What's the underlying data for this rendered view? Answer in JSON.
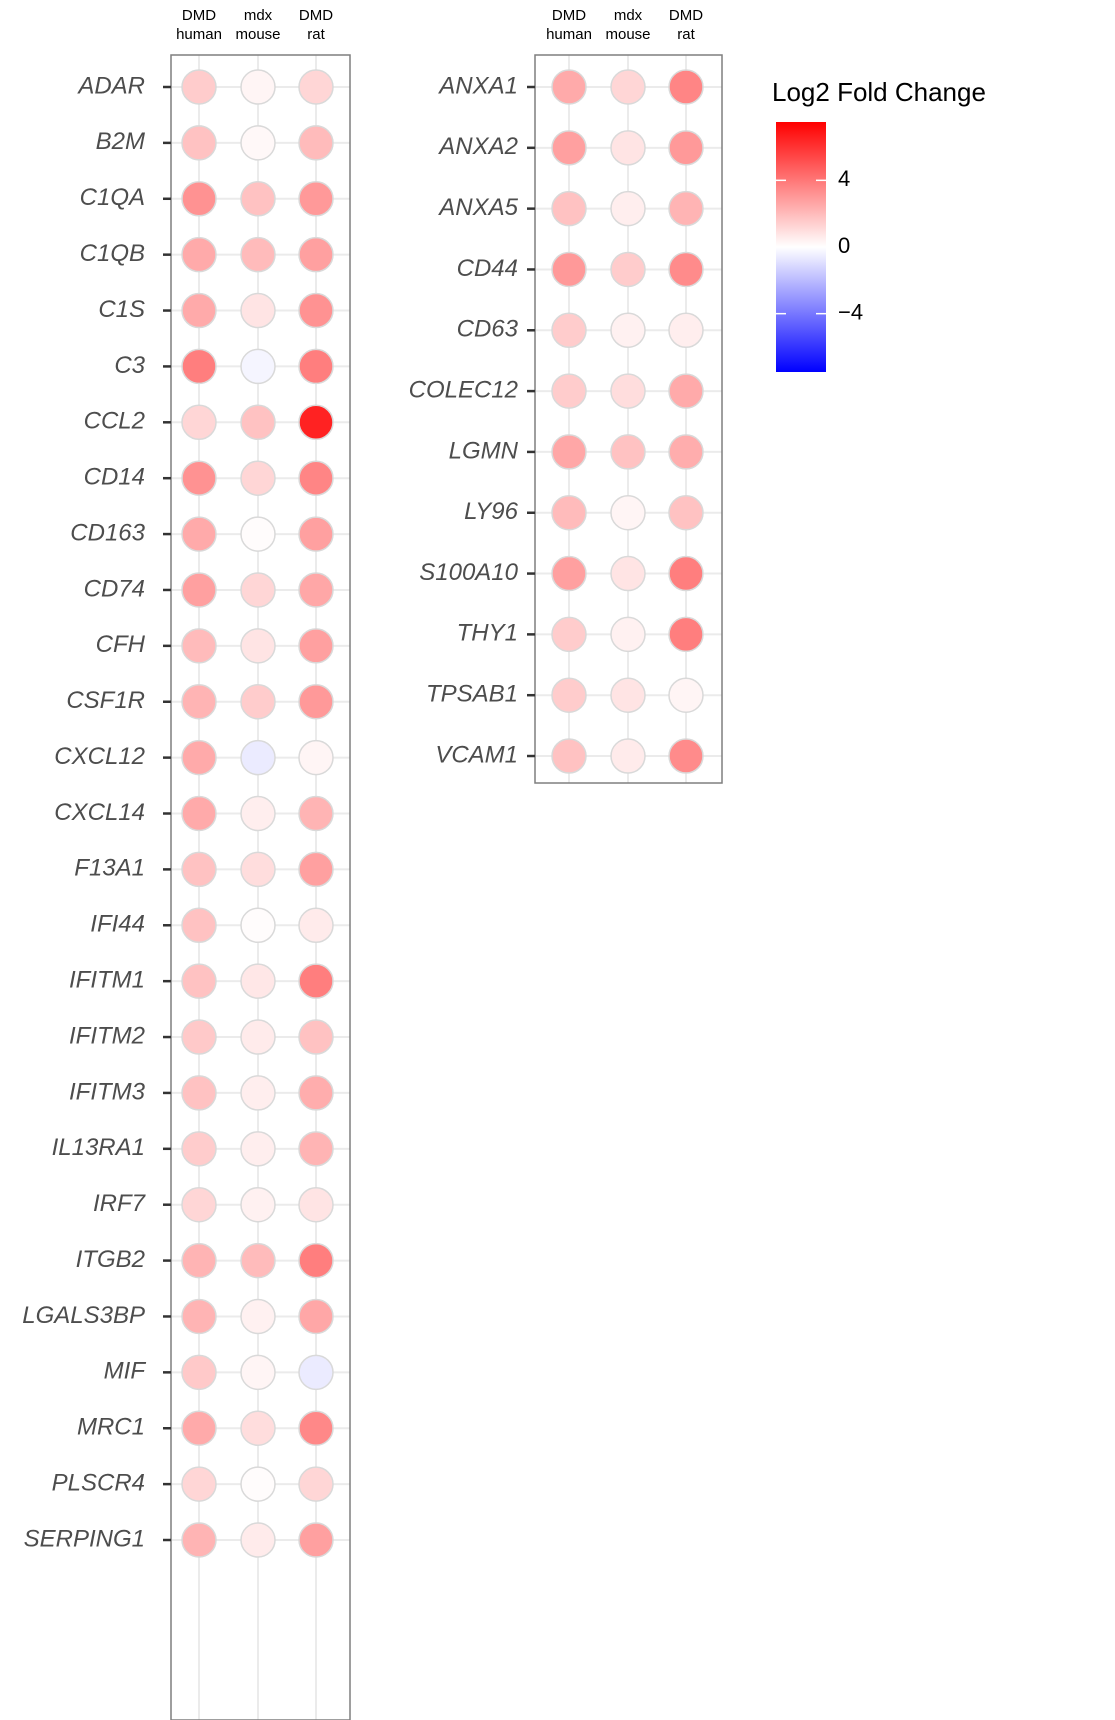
{
  "chart_data": {
    "type": "dotplot",
    "columns": [
      [
        "DMD",
        "human"
      ],
      [
        "mdx",
        "mouse"
      ],
      [
        "DMD",
        "rat"
      ]
    ],
    "panels": [
      {
        "genes": [
          "ADAR",
          "B2M",
          "C1QA",
          "C1QB",
          "C1S",
          "C3",
          "CCL2",
          "CD14",
          "CD163",
          "CD74",
          "CFH",
          "CSF1R",
          "CXCL12",
          "CXCL14",
          "F13A1",
          "IFI44",
          "IFITM1",
          "IFITM2",
          "IFITM3",
          "IL13RA1",
          "IRF7",
          "ITGB2",
          "LGALS3BP",
          "MIF",
          "MRC1",
          "PLSCR4",
          "SERPING1"
        ],
        "values": [
          [
            1.5,
            0.3,
            1.2
          ],
          [
            1.8,
            0.2,
            2.0
          ],
          [
            3.2,
            1.8,
            3.0
          ],
          [
            2.5,
            2.0,
            2.8
          ],
          [
            2.5,
            0.8,
            3.2
          ],
          [
            3.8,
            -0.3,
            3.8
          ],
          [
            1.2,
            1.8,
            6.5
          ],
          [
            3.2,
            1.2,
            3.6
          ],
          [
            2.5,
            0.1,
            2.8
          ],
          [
            2.8,
            1.2,
            2.6
          ],
          [
            2.0,
            0.8,
            2.8
          ],
          [
            2.2,
            1.5,
            3.0
          ],
          [
            2.5,
            -0.6,
            0.3
          ],
          [
            2.5,
            0.5,
            2.2
          ],
          [
            1.8,
            1.0,
            2.8
          ],
          [
            1.8,
            0.1,
            0.6
          ],
          [
            1.8,
            0.7,
            3.8
          ],
          [
            1.6,
            0.6,
            1.8
          ],
          [
            1.8,
            0.5,
            2.4
          ],
          [
            1.5,
            0.5,
            2.2
          ],
          [
            1.2,
            0.4,
            0.8
          ],
          [
            2.2,
            2.0,
            3.8
          ],
          [
            2.2,
            0.4,
            2.6
          ],
          [
            1.6,
            0.3,
            -0.6
          ],
          [
            2.5,
            1.0,
            3.5
          ],
          [
            1.2,
            0.1,
            1.2
          ],
          [
            2.2,
            0.6,
            2.8
          ]
        ]
      },
      {
        "genes": [
          "ANXA1",
          "ANXA2",
          "ANXA5",
          "CD44",
          "CD63",
          "COLEC12",
          "LGMN",
          "LY96",
          "S100A10",
          "THY1",
          "TPSAB1",
          "VCAM1"
        ],
        "values": [
          [
            2.5,
            1.2,
            3.6
          ],
          [
            2.8,
            0.8,
            3.0
          ],
          [
            1.8,
            0.5,
            2.2
          ],
          [
            3.0,
            1.5,
            3.4
          ],
          [
            1.5,
            0.4,
            0.5
          ],
          [
            1.5,
            1.0,
            2.5
          ],
          [
            2.6,
            1.8,
            2.4
          ],
          [
            2.0,
            0.3,
            1.8
          ],
          [
            2.8,
            0.8,
            3.8
          ],
          [
            1.5,
            0.4,
            3.8
          ],
          [
            1.5,
            0.8,
            0.3
          ],
          [
            1.8,
            0.6,
            3.4
          ]
        ]
      }
    ],
    "colorbar": {
      "title": "Log2 Fold Change",
      "lim": [
        -7.5,
        7.5
      ],
      "ticks": [
        4,
        0,
        {
          "value": -4,
          "label": "−4"
        }
      ],
      "colors": {
        "low": "#0000ff",
        "mid": "#ffffff",
        "high": "#ff0000"
      }
    }
  }
}
